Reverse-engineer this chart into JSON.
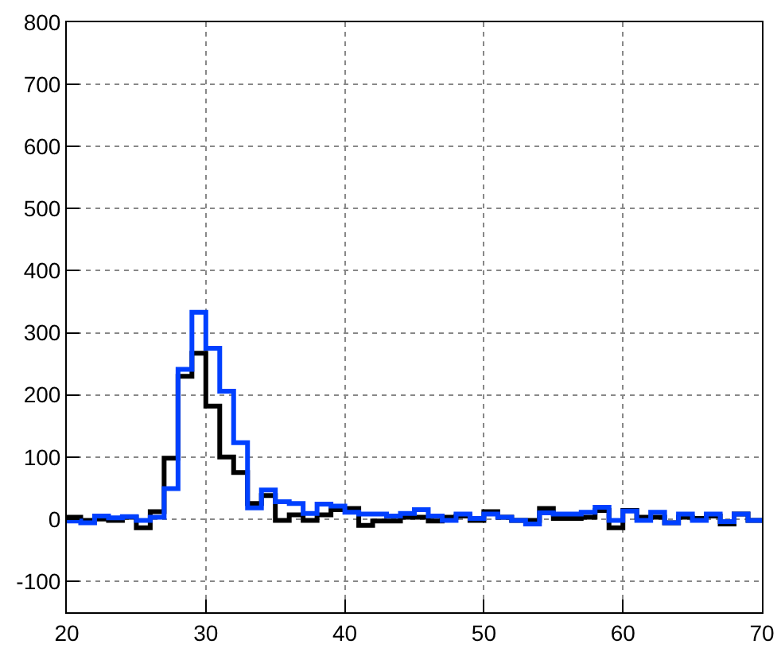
{
  "chart_data": {
    "type": "histogram",
    "bins": [
      20,
      21,
      22,
      23,
      24,
      25,
      26,
      27,
      28,
      29,
      30,
      31,
      32,
      33,
      34,
      35,
      36,
      37,
      38,
      39,
      40,
      41,
      42,
      43,
      44,
      45,
      46,
      47,
      48,
      49,
      50,
      51,
      52,
      53,
      54,
      55,
      56,
      57,
      58,
      59,
      60,
      61,
      62,
      63,
      64,
      65,
      66,
      67,
      68,
      69,
      70
    ],
    "series": [
      {
        "color": "#000000",
        "values": [
          3,
          -2,
          0,
          -2,
          3,
          -14,
          12,
          98,
          230,
          267,
          182,
          100,
          75,
          25,
          38,
          -2,
          7,
          -2,
          7,
          15,
          17,
          -10,
          -3,
          -3,
          3,
          3,
          -3,
          3,
          5,
          -2,
          12,
          3,
          -2,
          -2,
          17,
          1,
          1,
          3,
          14,
          -14,
          14,
          3,
          3,
          -6,
          3,
          1,
          5,
          -8,
          8,
          -2
        ]
      },
      {
        "color": "#0040ff",
        "values": [
          -3,
          -6,
          5,
          2,
          4,
          -2,
          3,
          49,
          241,
          333,
          275,
          206,
          123,
          18,
          47,
          28,
          25,
          9,
          24,
          21,
          11,
          8,
          8,
          5,
          9,
          15,
          5,
          -2,
          8,
          1,
          8,
          3,
          -2,
          -8,
          10,
          8,
          8,
          11,
          19,
          -2,
          13,
          -2,
          11,
          -6,
          8,
          -2,
          8,
          -4,
          8,
          -2
        ]
      }
    ],
    "xlim": [
      20,
      70
    ],
    "xticks": [
      20,
      30,
      40,
      50,
      60,
      70
    ],
    "ylim": [
      -150,
      800
    ],
    "yticks": [
      -100,
      0,
      100,
      200,
      300,
      400,
      500,
      600,
      700,
      800
    ],
    "grid": true
  }
}
